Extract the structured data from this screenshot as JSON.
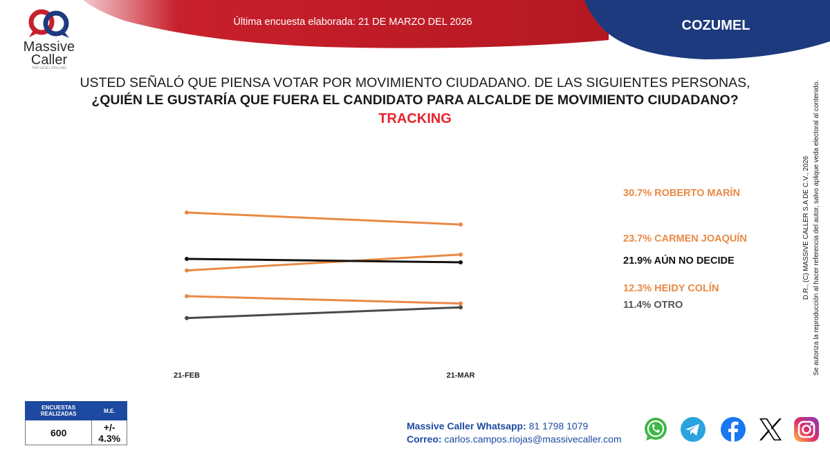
{
  "brand": {
    "logo_word1": "Massive",
    "logo_word2": "Caller",
    "logo_tagline": "TOP-LEVEL POLLING",
    "red": "#c8202c",
    "navy": "#1d3a7e",
    "blue": "#1d4aa0"
  },
  "header": {
    "survey_date_text": "Última encuesta elaborada: 21 DE MARZO DEL 2026",
    "region": "COZUMEL"
  },
  "question": {
    "line1": "USTED SEÑALÓ QUE PIENSA VOTAR POR MOVIMIENTO CIUDADANO. DE LAS SIGUIENTES PERSONAS,",
    "line2": "¿QUIÉN LE GUSTARÍA QUE FUERA EL CANDIDATO PARA ALCALDE DE MOVIMIENTO CIUDADANO?",
    "tracking": "TRACKING"
  },
  "chart_data": {
    "type": "line",
    "title": "TRACKING",
    "x": [
      "21-FEB",
      "21-MAR"
    ],
    "ylim": [
      5,
      42
    ],
    "grid": false,
    "legend": "right, end-of-line labels",
    "series": [
      {
        "name": "ROBERTO MARÍN",
        "values": [
          33.5,
          30.7
        ],
        "label": "30.7% ROBERTO MARÍN",
        "color": "#e88a45"
      },
      {
        "name": "CARMEN JOAQUÍN",
        "values": [
          20.0,
          23.7
        ],
        "label": "23.7% CARMEN JOAQUÍN",
        "color": "#e88a45"
      },
      {
        "name": "AÚN NO DECIDE",
        "values": [
          22.7,
          21.9
        ],
        "label": "21.9% AÚN NO DECIDE",
        "color": "#111111"
      },
      {
        "name": "HEIDY COLÍN",
        "values": [
          14.0,
          12.3
        ],
        "label": "12.3% HEIDY COLÍN",
        "color": "#e88a45"
      },
      {
        "name": "OTRO",
        "values": [
          8.9,
          11.4
        ],
        "label": "11.4% OTRO",
        "color": "#4a4a4a"
      }
    ]
  },
  "side_note": {
    "line1": "D.R., (C) MASSIVE CALLER S.A DE C.V., 2026",
    "line2": "Se autoriza la reproducción al hacer referencia del autor, salvo aplique veda electoral al contenido."
  },
  "survey": {
    "header_count": "ENCUESTAS REALIZADAS",
    "header_me": "M.E.",
    "count": "600",
    "me": "+/- 4.3%"
  },
  "contact": {
    "whatsapp_label": "Massive Caller Whatsapp:",
    "whatsapp_value": "81 1798 1079",
    "email_label": "Correo:",
    "email_value": "carlos.campos.riojas@massivecaller.com"
  },
  "social": {
    "whatsapp_color": "#41b649",
    "telegram_color": "#2aa3de",
    "facebook_color": "#1877f2",
    "x_color": "#000000"
  }
}
